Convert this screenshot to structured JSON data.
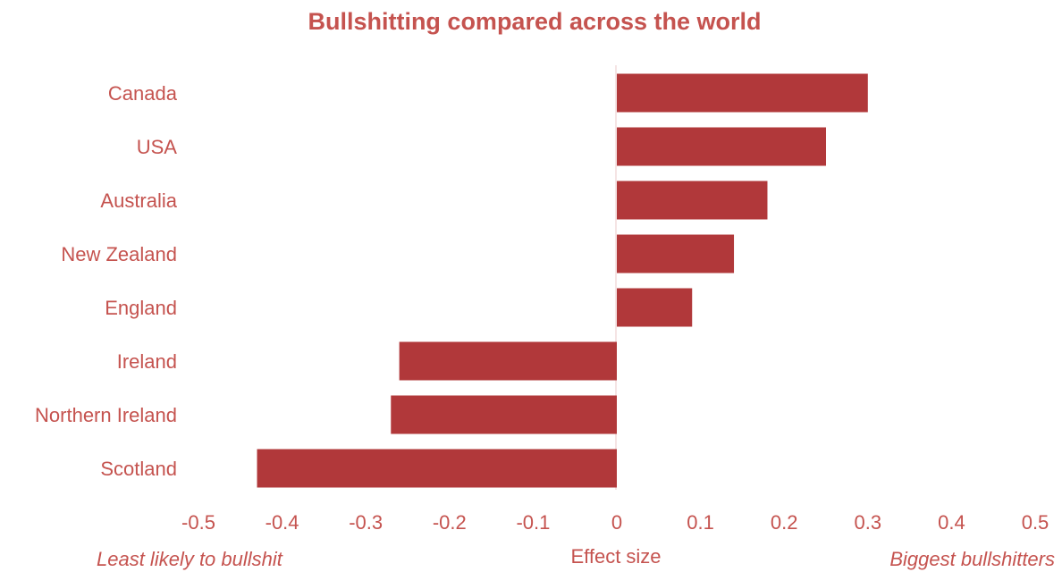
{
  "colors": {
    "bar": "#b1383a",
    "text": "#c5534f",
    "zero_line": "#f2dcdc"
  },
  "chart_data": {
    "type": "bar",
    "orientation": "horizontal",
    "title": "Bullshitting  compared across the world",
    "xlabel": "Effect size",
    "ylabel": "",
    "categories": [
      "Canada",
      "USA",
      "Australia",
      "New Zealand",
      "England",
      "Ireland",
      "Northern Ireland",
      "Scotland"
    ],
    "values": [
      0.3,
      0.25,
      0.18,
      0.14,
      0.09,
      -0.26,
      -0.27,
      -0.43
    ],
    "xlim": [
      -0.5,
      0.5
    ],
    "xticks": [
      "-0.5",
      "-0.4",
      "-0.3",
      "-0.2",
      "-0.1",
      "0",
      "0.1",
      "0.2",
      "0.3",
      "0.4",
      "0.5"
    ],
    "annotations": {
      "left": "Least likely to bullshit",
      "right": "Biggest bullshitters"
    },
    "grid": false,
    "legend": "none"
  }
}
